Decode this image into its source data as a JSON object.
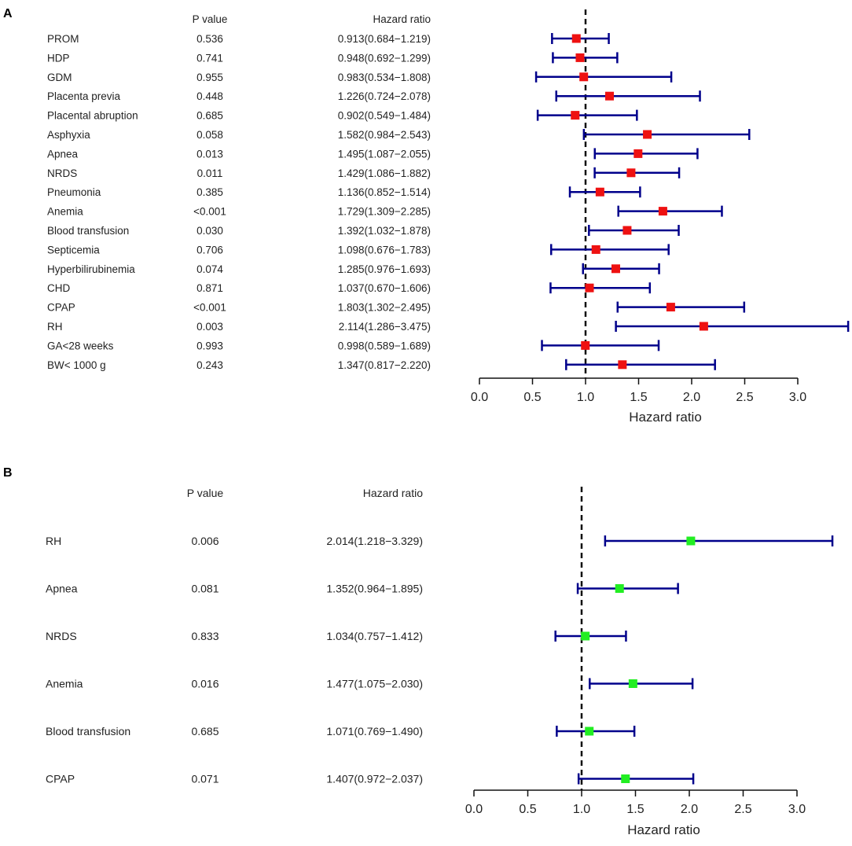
{
  "chart_data": [
    {
      "type": "forest",
      "panel_label": "A",
      "col_pvalue": "P value",
      "col_hr": "Hazard ratio",
      "xlabel": "Hazard ratio",
      "xlim": [
        0,
        3
      ],
      "ticks": [
        "0.0",
        "0.5",
        "1.0",
        "1.5",
        "2.0",
        "2.5",
        "3.0"
      ],
      "ref_line": 1,
      "marker_color": "#ee1111",
      "ci_color": "#00008b",
      "rows": [
        {
          "label": "PROM",
          "p": "0.536",
          "hr_text": "0.913(0.684−1.219)",
          "hr": 0.913,
          "lo": 0.684,
          "hi": 1.219
        },
        {
          "label": "HDP",
          "p": "0.741",
          "hr_text": "0.948(0.692−1.299)",
          "hr": 0.948,
          "lo": 0.692,
          "hi": 1.299
        },
        {
          "label": "GDM",
          "p": "0.955",
          "hr_text": "0.983(0.534−1.808)",
          "hr": 0.983,
          "lo": 0.534,
          "hi": 1.808
        },
        {
          "label": "Placenta previa",
          "p": "0.448",
          "hr_text": "1.226(0.724−2.078)",
          "hr": 1.226,
          "lo": 0.724,
          "hi": 2.078
        },
        {
          "label": "Placental abruption",
          "p": "0.685",
          "hr_text": "0.902(0.549−1.484)",
          "hr": 0.902,
          "lo": 0.549,
          "hi": 1.484
        },
        {
          "label": "Asphyxia",
          "p": "0.058",
          "hr_text": "1.582(0.984−2.543)",
          "hr": 1.582,
          "lo": 0.984,
          "hi": 2.543
        },
        {
          "label": "Apnea",
          "p": "0.013",
          "hr_text": "1.495(1.087−2.055)",
          "hr": 1.495,
          "lo": 1.087,
          "hi": 2.055
        },
        {
          "label": "NRDS",
          "p": "0.011",
          "hr_text": "1.429(1.086−1.882)",
          "hr": 1.429,
          "lo": 1.086,
          "hi": 1.882
        },
        {
          "label": "Pneumonia",
          "p": "0.385",
          "hr_text": "1.136(0.852−1.514)",
          "hr": 1.136,
          "lo": 0.852,
          "hi": 1.514
        },
        {
          "label": "Anemia",
          "p": "<0.001",
          "hr_text": "1.729(1.309−2.285)",
          "hr": 1.729,
          "lo": 1.309,
          "hi": 2.285
        },
        {
          "label": "Blood transfusion",
          "p": "0.030",
          "hr_text": "1.392(1.032−1.878)",
          "hr": 1.392,
          "lo": 1.032,
          "hi": 1.878
        },
        {
          "label": "Septicemia",
          "p": "0.706",
          "hr_text": "1.098(0.676−1.783)",
          "hr": 1.098,
          "lo": 0.676,
          "hi": 1.783
        },
        {
          "label": "Hyperbilirubinemia",
          "p": "0.074",
          "hr_text": "1.285(0.976−1.693)",
          "hr": 1.285,
          "lo": 0.976,
          "hi": 1.693
        },
        {
          "label": "CHD",
          "p": "0.871",
          "hr_text": "1.037(0.670−1.606)",
          "hr": 1.037,
          "lo": 0.67,
          "hi": 1.606
        },
        {
          "label": "CPAP",
          "p": "<0.001",
          "hr_text": "1.803(1.302−2.495)",
          "hr": 1.803,
          "lo": 1.302,
          "hi": 2.495
        },
        {
          "label": "RH",
          "p": "0.003",
          "hr_text": "2.114(1.286−3.475)",
          "hr": 2.114,
          "lo": 1.286,
          "hi": 3.475
        },
        {
          "label": "GA<28 weeks",
          "p": "0.993",
          "hr_text": "0.998(0.589−1.689)",
          "hr": 0.998,
          "lo": 0.589,
          "hi": 1.689
        },
        {
          "label": "BW< 1000 g",
          "p": "0.243",
          "hr_text": "1.347(0.817−2.220)",
          "hr": 1.347,
          "lo": 0.817,
          "hi": 2.22
        }
      ]
    },
    {
      "type": "forest",
      "panel_label": "B",
      "col_pvalue": "P value",
      "col_hr": "Hazard ratio",
      "xlabel": "Hazard ratio",
      "xlim": [
        0,
        3
      ],
      "ticks": [
        "0.0",
        "0.5",
        "1.0",
        "1.5",
        "2.0",
        "2.5",
        "3.0"
      ],
      "ref_line": 1,
      "marker_color": "#22ee22",
      "ci_color": "#00008b",
      "rows": [
        {
          "label": "RH",
          "p": "0.006",
          "hr_text": "2.014(1.218−3.329)",
          "hr": 2.014,
          "lo": 1.218,
          "hi": 3.329
        },
        {
          "label": "Apnea",
          "p": "0.081",
          "hr_text": "1.352(0.964−1.895)",
          "hr": 1.352,
          "lo": 0.964,
          "hi": 1.895
        },
        {
          "label": "NRDS",
          "p": "0.833",
          "hr_text": "1.034(0.757−1.412)",
          "hr": 1.034,
          "lo": 0.757,
          "hi": 1.412
        },
        {
          "label": "Anemia",
          "p": "0.016",
          "hr_text": "1.477(1.075−2.030)",
          "hr": 1.477,
          "lo": 1.075,
          "hi": 2.03
        },
        {
          "label": "Blood transfusion",
          "p": "0.685",
          "hr_text": "1.071(0.769−1.490)",
          "hr": 1.071,
          "lo": 0.769,
          "hi": 1.49
        },
        {
          "label": "CPAP",
          "p": "0.071",
          "hr_text": "1.407(0.972−2.037)",
          "hr": 1.407,
          "lo": 0.972,
          "hi": 2.037
        }
      ]
    }
  ]
}
